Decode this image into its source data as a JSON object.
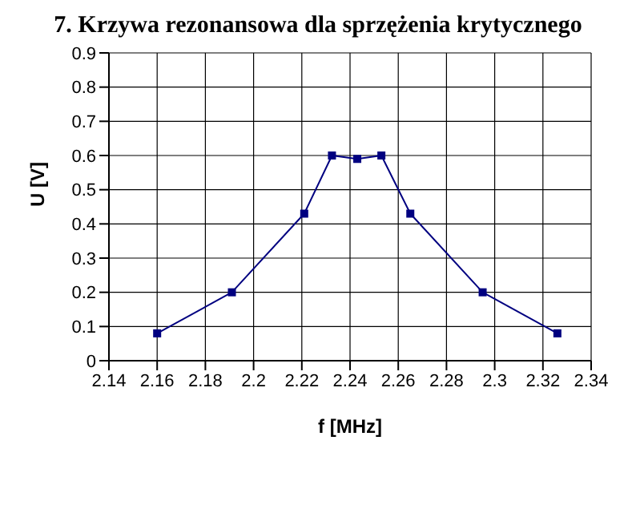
{
  "chart_data": {
    "type": "line",
    "title": "7. Krzywa rezonansowa dla sprzężenia krytycznego",
    "xlabel": "f [MHz]",
    "ylabel": "U [V]",
    "x": [
      2.16,
      2.191,
      2.221,
      2.2325,
      2.243,
      2.253,
      2.265,
      2.295,
      2.326
    ],
    "series": [
      {
        "color": "#000080",
        "values": [
          0.08,
          0.2,
          0.43,
          0.6,
          0.59,
          0.6,
          0.43,
          0.2,
          0.08
        ]
      }
    ],
    "xlim": [
      2.14,
      2.34
    ],
    "xticks": [
      2.14,
      2.16,
      2.18,
      2.2,
      2.22,
      2.24,
      2.26,
      2.28,
      2.3,
      2.32,
      2.34
    ],
    "ylim": [
      0,
      0.9
    ],
    "yticks": [
      0,
      0.1,
      0.2,
      0.3,
      0.4,
      0.5,
      0.6,
      0.7,
      0.8,
      0.9
    ],
    "grid": true,
    "marker": "square",
    "line_style": "solid"
  }
}
